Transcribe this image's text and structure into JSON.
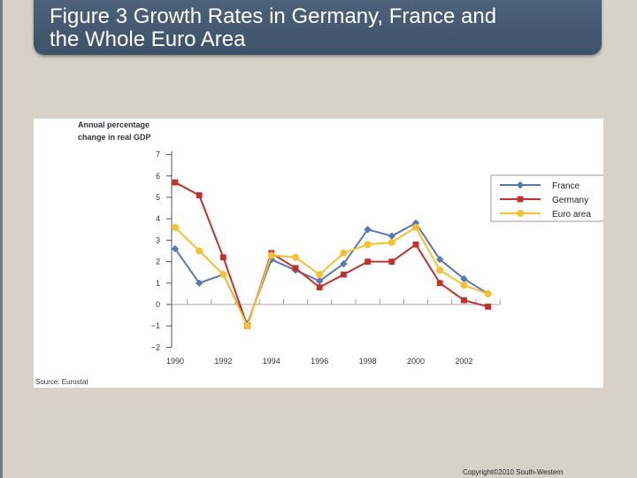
{
  "slide": {
    "title_line1": "Figure 3 Growth Rates in Germany, France and",
    "title_line2": "the Whole Euro Area",
    "copyright": "Copyright©2010  South-Western"
  },
  "colors": {
    "france": "#5a78b0",
    "germany": "#c4302b",
    "euro": "#f4c132"
  },
  "chart_data": {
    "type": "line",
    "ylabel_line1": "Annual percentage",
    "ylabel_line2": "change in real GDP",
    "source": "Source: Eurostat",
    "x": [
      1990,
      1991,
      1992,
      1993,
      1994,
      1995,
      1996,
      1997,
      1998,
      1999,
      2000,
      2001,
      2002,
      2003
    ],
    "x_tick_labels": [
      "1990",
      "1992",
      "1994",
      "1996",
      "1998",
      "2000",
      "2002"
    ],
    "x_tick_values": [
      1990,
      1992,
      1994,
      1996,
      1998,
      2000,
      2002
    ],
    "ylim": [
      -2,
      7
    ],
    "y_ticks": [
      7,
      6,
      5,
      4,
      3,
      2,
      1,
      0,
      -1,
      -2
    ],
    "y_tick_labels": [
      "7",
      "6",
      "5",
      "4",
      "3",
      "2",
      "1",
      "0",
      "−1",
      "−2"
    ],
    "legend_position": "right",
    "series": [
      {
        "name": "France",
        "marker": "diamond",
        "values": [
          2.6,
          1.0,
          1.4,
          -0.9,
          2.1,
          1.6,
          1.1,
          1.9,
          3.5,
          3.2,
          3.8,
          2.1,
          1.2,
          0.5
        ]
      },
      {
        "name": "Germany",
        "marker": "square",
        "values": [
          5.7,
          5.1,
          2.2,
          -1.0,
          2.4,
          1.7,
          0.8,
          1.4,
          2.0,
          2.0,
          2.8,
          1.0,
          0.2,
          -0.1
        ]
      },
      {
        "name": "Euro area",
        "marker": "circle",
        "values": [
          3.6,
          2.5,
          1.4,
          -1.0,
          2.3,
          2.2,
          1.4,
          2.4,
          2.8,
          2.9,
          3.6,
          1.6,
          0.9,
          0.5
        ]
      }
    ]
  }
}
